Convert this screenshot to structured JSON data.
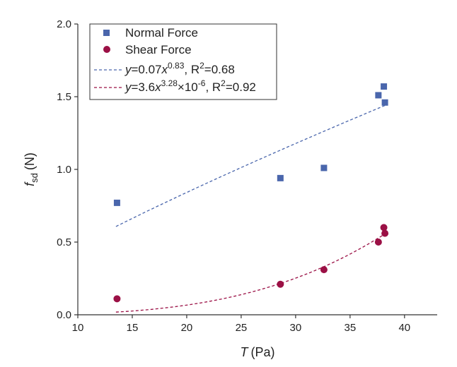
{
  "chart_data": {
    "type": "scatter",
    "title": "",
    "xlabel": {
      "symbol": "T",
      "unit": "(Pa)"
    },
    "ylabel": {
      "symbol": "f",
      "subscript": "sd",
      "unit": "(N)"
    },
    "xlim": [
      10,
      43
    ],
    "ylim": [
      0,
      2
    ],
    "x_ticks": [
      10,
      15,
      20,
      25,
      30,
      35,
      40
    ],
    "x_tick_labels": [
      "10",
      "15",
      "20",
      "25",
      "30",
      "35",
      "40"
    ],
    "y_ticks": [
      0,
      0.5,
      1.0,
      1.5,
      2.0
    ],
    "y_tick_labels": [
      "0.0",
      "0.5",
      "1.0",
      "1.5",
      "2.0"
    ],
    "grid": false,
    "legend_position": "top-left",
    "series": [
      {
        "name": "Normal Force",
        "marker": "square",
        "color": "#4a66ac",
        "x": [
          13.6,
          28.6,
          32.6,
          37.6,
          38.1,
          38.2
        ],
        "y": [
          0.77,
          0.94,
          1.01,
          1.51,
          1.57,
          1.46
        ]
      },
      {
        "name": "Shear Force",
        "marker": "circle",
        "color": "#9b1045",
        "x": [
          13.6,
          28.6,
          32.6,
          37.6,
          38.1,
          38.2
        ],
        "y": [
          0.11,
          0.21,
          0.31,
          0.5,
          0.6,
          0.56
        ]
      }
    ],
    "fits": [
      {
        "series": "Normal Force",
        "color": "#4a66ac",
        "style": "dashed",
        "model": "power",
        "coef": 0.07,
        "exp": 0.83,
        "x_range": [
          13.5,
          38.2
        ],
        "label_parts": [
          "y",
          "=0.07",
          "x",
          "0.83",
          ", R",
          "2",
          "=0.68"
        ]
      },
      {
        "series": "Shear Force",
        "color": "#9b1045",
        "style": "dashed",
        "model": "power",
        "coef": 3.6e-06,
        "exp": 3.28,
        "x_range": [
          13.5,
          38.2
        ],
        "label_parts": [
          "y",
          "=3.6",
          "x",
          "3.28",
          "×10",
          "-6",
          ", R",
          "2",
          "=0.92"
        ]
      }
    ]
  }
}
